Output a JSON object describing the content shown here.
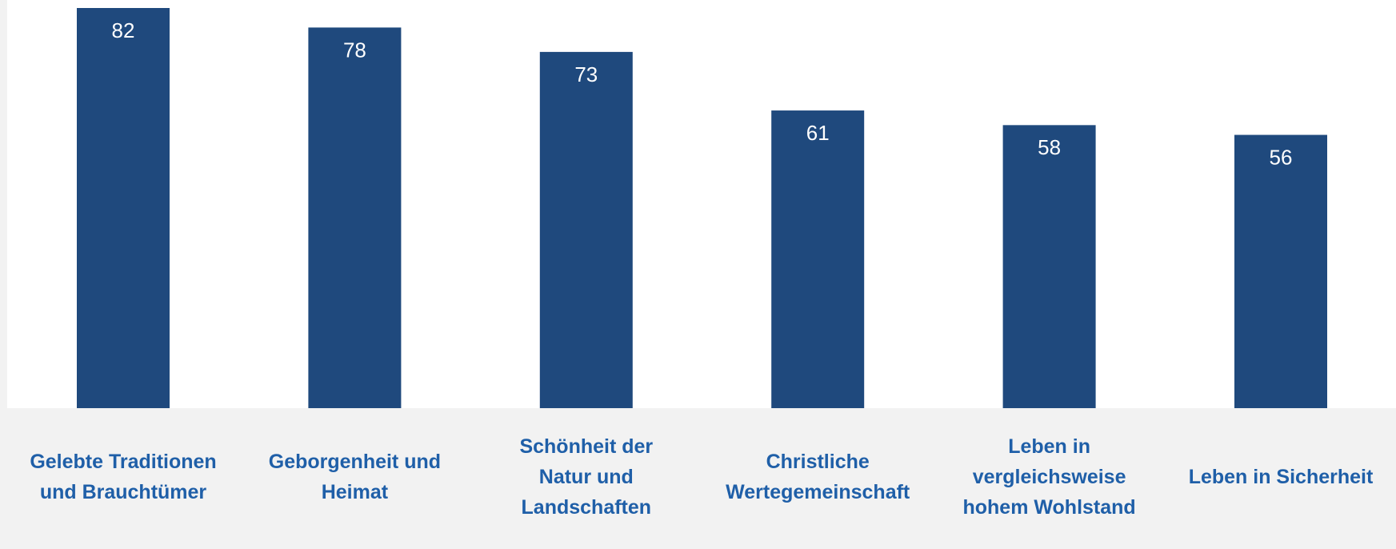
{
  "chart_data": {
    "type": "bar",
    "categories": [
      "Gelebte Traditionen und Brauchtümer",
      "Geborgenheit und Heimat",
      "Schönheit der Natur und Landschaften",
      "Christliche Wertegemeinschaft",
      "Leben in vergleichsweise hohem Wohlstand",
      "Leben in Sicherheit"
    ],
    "values": [
      82,
      78,
      73,
      61,
      58,
      56
    ],
    "color": "#1f497d"
  }
}
